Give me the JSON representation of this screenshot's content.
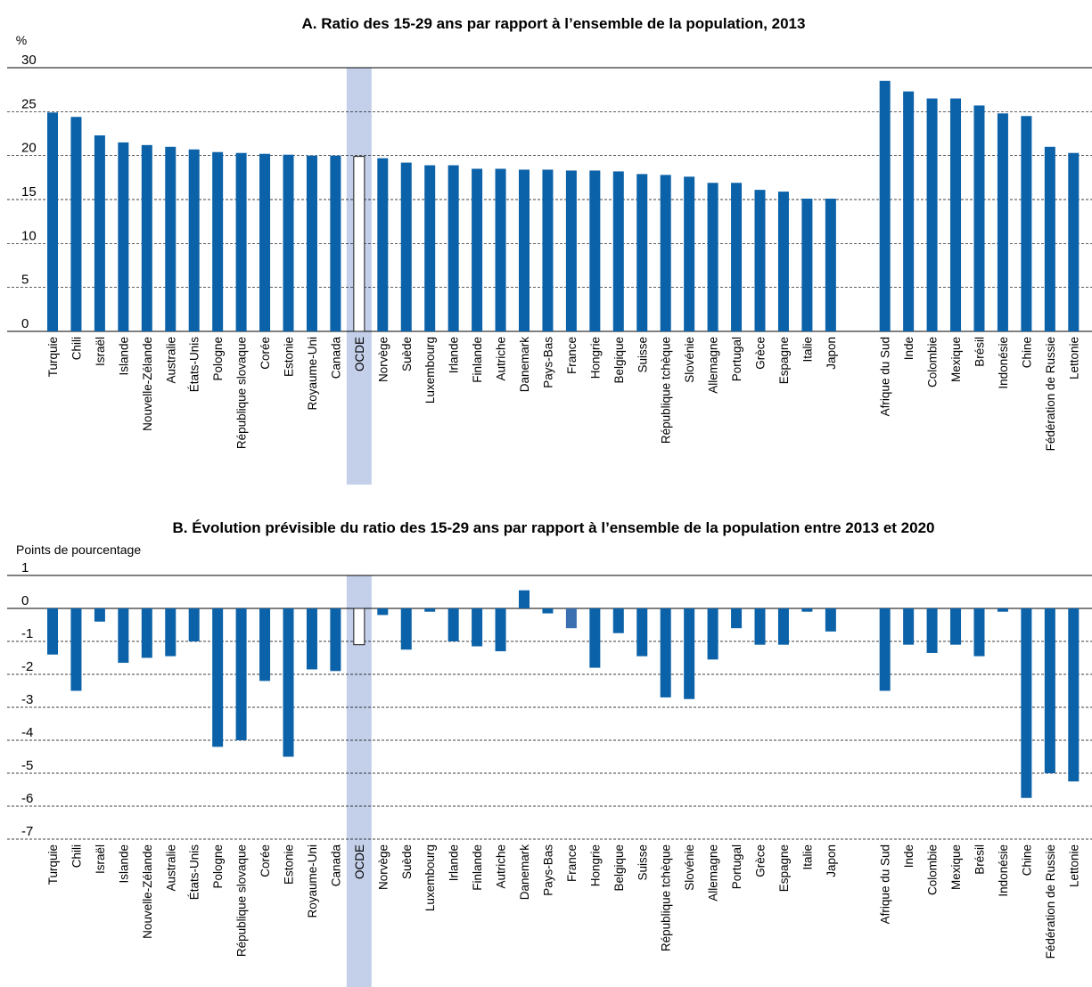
{
  "chart_data": [
    {
      "type": "bar",
      "title": "A. Ratio des 15-29 ans par rapport à l’ensemble de la population, 2013",
      "unit_label": "%",
      "ylim": [
        0,
        30
      ],
      "yticks": [
        0,
        5,
        10,
        15,
        20,
        25,
        30
      ],
      "grid": true,
      "highlight_category": "OCDE",
      "colors": {
        "bar": "#0b62a8",
        "bar_highlight": "#ffffff",
        "highlight_band": "#c4cfe9"
      },
      "categories": [
        "Turquie",
        "Chili",
        "Israël",
        "Islande",
        "Nouvelle-Zélande",
        "Australie",
        "États-Unis",
        "Pologne",
        "République slovaque",
        "Corée",
        "Estonie",
        "Royaume-Uni",
        "Canada",
        "OCDE",
        "Norvège",
        "Suède",
        "Luxembourg",
        "Irlande",
        "Finlande",
        "Autriche",
        "Danemark",
        "Pays-Bas",
        "France",
        "Hongrie",
        "Belgique",
        "Suisse",
        "République tchèque",
        "Slovénie",
        "Allemagne",
        "Portugal",
        "Grèce",
        "Espagne",
        "Italie",
        "Japon",
        "Afrique du Sud",
        "Inde",
        "Colombie",
        "Mexique",
        "Brésil",
        "Indonésie",
        "Chine",
        "Fédération de Russie",
        "Lettonie"
      ],
      "values": [
        24.9,
        24.4,
        22.3,
        21.5,
        21.2,
        21.0,
        20.7,
        20.4,
        20.3,
        20.2,
        20.1,
        20.0,
        20.0,
        19.9,
        19.7,
        19.2,
        18.9,
        18.9,
        18.5,
        18.5,
        18.4,
        18.4,
        18.3,
        18.3,
        18.2,
        17.9,
        17.8,
        17.6,
        16.9,
        16.9,
        16.1,
        15.9,
        15.1,
        15.1,
        28.5,
        27.3,
        26.5,
        26.5,
        25.7,
        24.8,
        24.5,
        21.0,
        20.3
      ]
    },
    {
      "type": "bar",
      "title": "B. Évolution prévisible du ratio des 15-29 ans par rapport à l’ensemble de la population entre 2013 et 2020",
      "unit_label": "Points de pourcentage",
      "ylim": [
        -7,
        1
      ],
      "yticks": [
        1,
        0,
        -1,
        -2,
        -3,
        -4,
        -5,
        -6,
        -7
      ],
      "grid": true,
      "highlight_category": "OCDE",
      "colors": {
        "bar": "#0b62a8",
        "bar_highlight": "#ffffff",
        "highlight_band": "#c4cfe9",
        "bar_france": "#3a6fb0"
      },
      "categories": [
        "Turquie",
        "Chili",
        "Israël",
        "Islande",
        "Nouvelle-Zélande",
        "Australie",
        "États-Unis",
        "Pologne",
        "République slovaque",
        "Corée",
        "Estonie",
        "Royaume-Uni",
        "Canada",
        "OCDE",
        "Norvège",
        "Suède",
        "Luxembourg",
        "Irlande",
        "Finlande",
        "Autriche",
        "Danemark",
        "Pays-Bas",
        "France",
        "Hongrie",
        "Belgique",
        "Suisse",
        "République tchèque",
        "Slovénie",
        "Allemagne",
        "Portugal",
        "Grèce",
        "Espagne",
        "Italie",
        "Japon",
        "Afrique du Sud",
        "Inde",
        "Colombie",
        "Mexique",
        "Brésil",
        "Indonésie",
        "Chine",
        "Fédération de Russie",
        "Lettonie"
      ],
      "values": [
        -1.4,
        -2.5,
        -0.4,
        -1.65,
        -1.5,
        -1.45,
        -1.0,
        -4.2,
        -4.0,
        -2.2,
        -4.5,
        -1.85,
        -1.9,
        -1.1,
        -0.2,
        -1.25,
        -0.1,
        -1.0,
        -1.15,
        -1.3,
        0.55,
        -0.15,
        -0.6,
        -1.8,
        -0.75,
        -1.45,
        -2.7,
        -2.75,
        -1.55,
        -0.6,
        -1.1,
        -1.1,
        -0.1,
        -0.7,
        -2.5,
        -1.1,
        -1.35,
        -1.1,
        -1.45,
        -0.1,
        -5.75,
        -5.0,
        -5.25
      ]
    }
  ]
}
